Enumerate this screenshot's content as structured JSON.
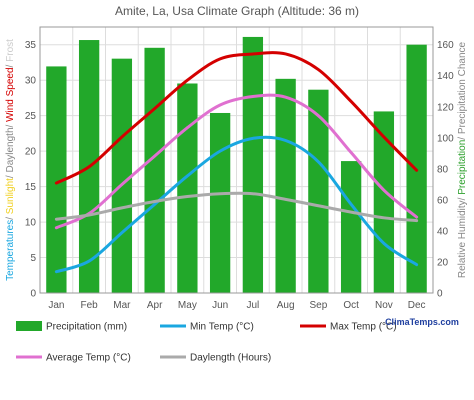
{
  "chart_data": {
    "type": "bar",
    "title": "Amite, La, Usa Climate Graph (Altitude: 36 m)",
    "categories": [
      "Jan",
      "Feb",
      "Mar",
      "Apr",
      "May",
      "Jun",
      "Jul",
      "Aug",
      "Sep",
      "Oct",
      "Nov",
      "Dec"
    ],
    "y_left_ticks": [
      "0",
      "5",
      "10",
      "15",
      "20",
      "25",
      "30",
      "35"
    ],
    "y_right_ticks": [
      "0",
      "20",
      "40",
      "60",
      "80",
      "100",
      "120",
      "140",
      "160"
    ],
    "ylim_left": [
      0,
      37.5
    ],
    "ylim_right": [
      0,
      171.4
    ],
    "grid": true,
    "left_axis_label": [
      {
        "text": "Temperatures",
        "color": "#1aa7e0"
      },
      {
        "text": "/ ",
        "color": "#888888"
      },
      {
        "text": "Sunlight",
        "color": "#f0d020"
      },
      {
        "text": "/ ",
        "color": "#888888"
      },
      {
        "text": "Daylength",
        "color": "#888888"
      },
      {
        "text": "/ ",
        "color": "#888888"
      },
      {
        "text": "Wind Speed",
        "color": "#d40000"
      },
      {
        "text": "/ ",
        "color": "#888888"
      },
      {
        "text": "Frost",
        "color": "#cccccc"
      }
    ],
    "right_axis_label": [
      {
        "text": "Relative Humidity",
        "color": "#888888"
      },
      {
        "text": "/ ",
        "color": "#888888"
      },
      {
        "text": "Precipitation",
        "color": "#2ca02c"
      },
      {
        "text": "/ ",
        "color": "#888888"
      },
      {
        "text": "Precipitation Chance",
        "color": "#888888"
      }
    ],
    "series": [
      {
        "name": "Precipitation (mm)",
        "axis": "right",
        "kind": "bar",
        "color": "#22a82a",
        "values": [
          146,
          163,
          151,
          158,
          135,
          116,
          165,
          138,
          131,
          85,
          117,
          160
        ]
      },
      {
        "name": "Min Temp (°C)",
        "axis": "left",
        "kind": "line",
        "color": "#1aa7e0",
        "values": [
          3.0,
          4.5,
          8.5,
          12.5,
          16.5,
          20.0,
          21.8,
          21.5,
          18.5,
          12.5,
          7.0,
          4.0
        ]
      },
      {
        "name": "Max Temp (°C)",
        "axis": "left",
        "kind": "line",
        "color": "#d40000",
        "values": [
          15.5,
          17.8,
          22.0,
          26.0,
          30.0,
          33.0,
          33.7,
          33.7,
          31.5,
          27.0,
          22.0,
          17.3
        ]
      },
      {
        "name": "Average Temp (°C)",
        "axis": "left",
        "kind": "line",
        "color": "#e070d0",
        "values": [
          9.2,
          11.2,
          15.3,
          19.3,
          23.3,
          26.5,
          27.7,
          27.6,
          25.0,
          19.8,
          14.5,
          10.7
        ]
      },
      {
        "name": "Daylength (Hours)",
        "axis": "left",
        "kind": "line",
        "color": "#aaaaaa",
        "values": [
          10.4,
          11.0,
          12.0,
          12.9,
          13.6,
          14.0,
          14.0,
          13.2,
          12.3,
          11.4,
          10.6,
          10.2
        ]
      }
    ]
  },
  "credit": "ClimaTemps.com"
}
